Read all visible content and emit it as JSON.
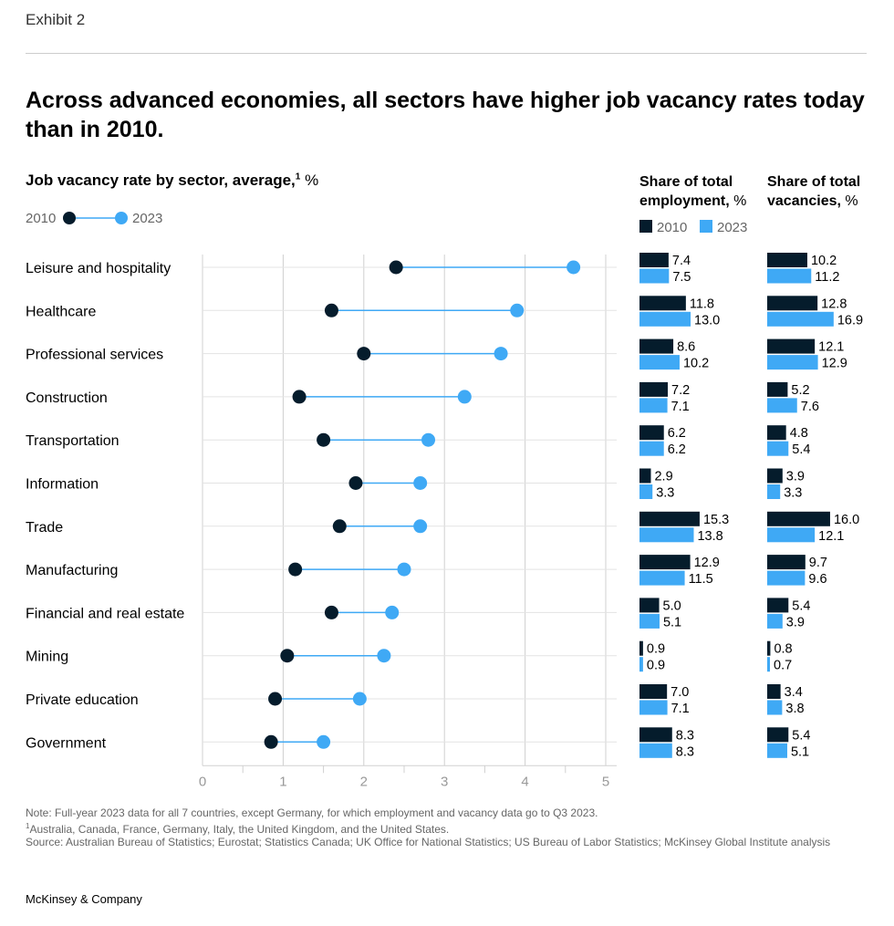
{
  "header": {
    "exhibit": "Exhibit 2",
    "title": "Across advanced economies, all sectors have higher job vacancy rates today than in 2010."
  },
  "chart_data": {
    "type": "dumbbell",
    "subtitle": "Job vacancy rate by sector, average,",
    "subtitle_sup": "1",
    "subtitle_unit": " %",
    "legend": {
      "start": "2010",
      "end": "2023"
    },
    "colors": {
      "y2010": "#051c2c",
      "y2023": "#3fa9f5",
      "grid": "#d0d0d0"
    },
    "xlim": [
      0,
      5
    ],
    "xticks": [
      "0",
      "1",
      "2",
      "3",
      "4",
      "5"
    ],
    "grid": true,
    "categories": [
      "Leisure and hospitality",
      "Healthcare",
      "Professional services",
      "Construction",
      "Transportation",
      "Information",
      "Trade",
      "Manufacturing",
      "Financial and real estate",
      "Mining",
      "Private education",
      "Government"
    ],
    "series": [
      {
        "name": "2010",
        "values": [
          2.4,
          1.6,
          2.0,
          1.2,
          1.5,
          1.9,
          1.7,
          1.15,
          1.6,
          1.05,
          0.9,
          0.85
        ]
      },
      {
        "name": "2023",
        "values": [
          4.6,
          3.9,
          3.7,
          3.25,
          2.8,
          2.7,
          2.7,
          2.5,
          2.35,
          2.25,
          1.95,
          1.5
        ]
      }
    ],
    "panels": [
      {
        "title": "Share of total employment,",
        "unit": " %",
        "legend": [
          "2010",
          "2023"
        ],
        "y2010": [
          7.4,
          11.8,
          8.6,
          7.2,
          6.2,
          2.9,
          15.3,
          12.9,
          5.0,
          0.9,
          7.0,
          8.3
        ],
        "y2023": [
          7.5,
          13.0,
          10.2,
          7.1,
          6.2,
          3.3,
          13.8,
          11.5,
          5.1,
          0.9,
          7.1,
          8.3
        ]
      },
      {
        "title": "Share of total vacancies,",
        "unit": " %",
        "y2010": [
          10.2,
          12.8,
          12.1,
          5.2,
          4.8,
          3.9,
          16.0,
          9.7,
          5.4,
          0.8,
          3.4,
          5.4
        ],
        "y2023": [
          11.2,
          16.9,
          12.9,
          7.6,
          5.4,
          3.3,
          12.1,
          9.6,
          3.9,
          0.7,
          3.8,
          5.1
        ]
      }
    ]
  },
  "notes": {
    "note": "Note: Full-year 2023 data for all 7 countries, except Germany, for which employment and vacancy data go to Q3 2023.",
    "footnote_mark": "1",
    "footnote": "Australia, Canada, France, Germany, Italy, the United Kingdom, and the United States.",
    "source": "Source: Australian Bureau of Statistics; Eurostat; Statistics Canada; UK Office for National Statistics; US Bureau of Labor Statistics; McKinsey Global Institute analysis"
  },
  "footer": {
    "brand": "McKinsey & Company"
  }
}
